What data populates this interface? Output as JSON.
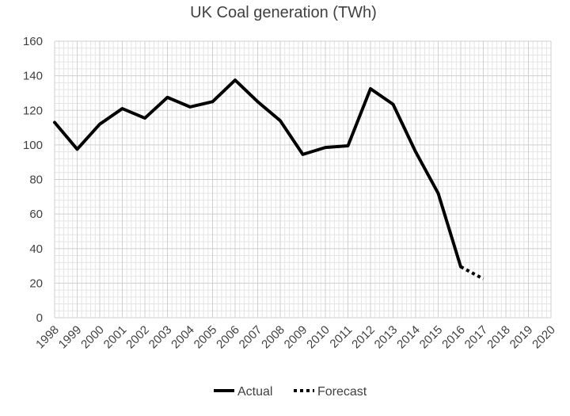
{
  "chart_data": {
    "type": "line",
    "title": "UK Coal generation (TWh)",
    "xlabel": "",
    "ylabel": "",
    "x": [
      "1998",
      "1999",
      "2000",
      "2001",
      "2002",
      "2003",
      "2004",
      "2005",
      "2006",
      "2007",
      "2008",
      "2009",
      "2010",
      "2011",
      "2012",
      "2013",
      "2014",
      "2015",
      "2016",
      "2017",
      "2018",
      "2019",
      "2020"
    ],
    "ylim": [
      0,
      160
    ],
    "yticks": [
      0,
      20,
      40,
      60,
      80,
      100,
      120,
      140,
      160
    ],
    "grid": true,
    "legend_position": "bottom",
    "series": [
      {
        "name": "Actual",
        "style": "solid",
        "color": "#000000",
        "points": [
          [
            "1998",
            113
          ],
          [
            "1999",
            97.5
          ],
          [
            "2000",
            112
          ],
          [
            "2001",
            121
          ],
          [
            "2002",
            115.5
          ],
          [
            "2003",
            127.5
          ],
          [
            "2004",
            122
          ],
          [
            "2005",
            125
          ],
          [
            "2006",
            137.5
          ],
          [
            "2007",
            125
          ],
          [
            "2008",
            114
          ],
          [
            "2009",
            94.5
          ],
          [
            "2010",
            98.5
          ],
          [
            "2011",
            99.5
          ],
          [
            "2012",
            132.5
          ],
          [
            "2013",
            123.5
          ],
          [
            "2014",
            96
          ],
          [
            "2015",
            72
          ],
          [
            "2016",
            29.5
          ]
        ]
      },
      {
        "name": "Forecast",
        "style": "dotted",
        "color": "#000000",
        "points": [
          [
            "2016",
            29.5
          ],
          [
            "2017",
            22.5
          ]
        ]
      }
    ]
  }
}
